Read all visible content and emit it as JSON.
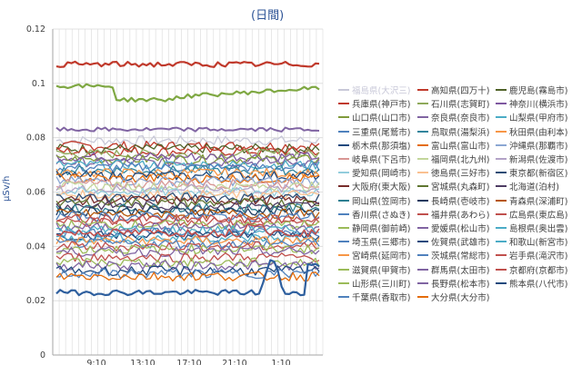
{
  "chart_data": {
    "type": "line",
    "title": "(日間)",
    "ylabel": "μSv/h",
    "xlabel": "",
    "ylim": [
      0,
      0.12
    ],
    "y_ticks": [
      "0",
      "0.02",
      "0.04",
      "0.06",
      "0.08",
      "0.1",
      "0.12"
    ],
    "x_ticks": [
      "9:10",
      "13:10",
      "17:10",
      "21:10",
      "1:10"
    ],
    "grid": true,
    "legend_position": "right",
    "series": [
      {
        "name": "福島県(大沢三)",
        "color": "#c8c8d8",
        "base": 0.078
      },
      {
        "name": "高知県(四万十)",
        "color": "#c0392b",
        "base": 0.076
      },
      {
        "name": "鹿児島(霧島市)",
        "color": "#4f6228",
        "base": 0.074
      },
      {
        "name": "兵庫県(神戸市)",
        "color": "#c0392b",
        "base": 0.072
      },
      {
        "name": "石川県(志賀町)",
        "color": "#8ea95a",
        "base": 0.07
      },
      {
        "name": "神奈川(横浜市)",
        "color": "#7e57a0",
        "base": 0.068
      },
      {
        "name": "山口県(山口市)",
        "color": "#7f9a3a",
        "base": 0.066
      },
      {
        "name": "奈良県(奈良市)",
        "color": "#8064a2",
        "base": 0.064
      },
      {
        "name": "山梨県(甲府市)",
        "color": "#4bacc6",
        "base": 0.063
      },
      {
        "name": "三重県(尾鷲市)",
        "color": "#4f81bd",
        "base": 0.062
      },
      {
        "name": "鳥取県(湯梨浜)",
        "color": "#31859c",
        "base": 0.061
      },
      {
        "name": "秋田県(由利本)",
        "color": "#f79646",
        "base": 0.06
      },
      {
        "name": "栃木県(那須塩)",
        "color": "#1f497d",
        "base": 0.058
      },
      {
        "name": "富山県(富山市)",
        "color": "#e46c0a",
        "base": 0.057
      },
      {
        "name": "沖縄県(那覇市)",
        "color": "#8ba7d3",
        "base": 0.056
      },
      {
        "name": "岐阜県(下呂市)",
        "color": "#d99694",
        "base": 0.055
      },
      {
        "name": "福岡県(北九州)",
        "color": "#c3d69b",
        "base": 0.054
      },
      {
        "name": "新潟県(佐渡市)",
        "color": "#b3a2c7",
        "base": 0.053
      },
      {
        "name": "愛知県(岡崎市)",
        "color": "#92cddc",
        "base": 0.052
      },
      {
        "name": "徳島県(三好市)",
        "color": "#fac090",
        "base": 0.05
      },
      {
        "name": "東京都(新宿区)",
        "color": "#2c4d75",
        "base": 0.049
      },
      {
        "name": "大阪府(東大阪)",
        "color": "#772c2a",
        "base": 0.048
      },
      {
        "name": "宮城県(丸森町)",
        "color": "#5f7530",
        "base": 0.047
      },
      {
        "name": "北海道(泊村)",
        "color": "#4d3b62",
        "base": 0.046
      },
      {
        "name": "岡山県(笠岡市)",
        "color": "#2d7f91",
        "base": 0.045
      },
      {
        "name": "長崎県(壱岐市)",
        "color": "#1f3a5f",
        "base": 0.044
      },
      {
        "name": "青森県(深浦町)",
        "color": "#b65708",
        "base": 0.043
      },
      {
        "name": "香川県(さぬき)",
        "color": "#4f81bd",
        "base": 0.042
      },
      {
        "name": "福井県(あわら)",
        "color": "#c0504d",
        "base": 0.041
      },
      {
        "name": "広島県(東広島)",
        "color": "#c0504d",
        "base": 0.04
      },
      {
        "name": "静岡県(御前崎)",
        "color": "#9bbb59",
        "base": 0.039
      },
      {
        "name": "愛媛県(松山市)",
        "color": "#8064a2",
        "base": 0.038
      },
      {
        "name": "島根県(奥出雲)",
        "color": "#4bacc6",
        "base": 0.037
      },
      {
        "name": "埼玉県(三郷市)",
        "color": "#4f81bd",
        "base": 0.036
      },
      {
        "name": "佐賀県(武雄市)",
        "color": "#1f497d",
        "base": 0.035
      },
      {
        "name": "和歌山(新宮市)",
        "color": "#4bacc6",
        "base": 0.034
      },
      {
        "name": "宮崎県(延岡市)",
        "color": "#f79646",
        "base": 0.033
      },
      {
        "name": "茨城県(常総市)",
        "color": "#4f81bd",
        "base": 0.032
      },
      {
        "name": "岩手県(滝沢市)",
        "color": "#c0504d",
        "base": 0.031
      },
      {
        "name": "滋賀県(甲賀市)",
        "color": "#9bbb59",
        "base": 0.03
      },
      {
        "name": "群馬県(太田市)",
        "color": "#8064a2",
        "base": 0.029
      },
      {
        "name": "京都府(京都市)",
        "color": "#c0504d",
        "base": 0.028
      },
      {
        "name": "山形県(三川町)",
        "color": "#9bbb59",
        "base": 0.027
      },
      {
        "name": "長野県(松本市)",
        "color": "#8064a2",
        "base": 0.026
      },
      {
        "name": "熊本県(八代市)",
        "color": "#1f497d",
        "base": 0.025
      },
      {
        "name": "千葉県(香取市)",
        "color": "#4f81bd",
        "base": 0.024
      },
      {
        "name": "大分県(大分市)",
        "color": "#e46c0a",
        "base": 0.023
      }
    ],
    "highlighted_series": [
      {
        "name": "top-red",
        "color": "#c0392b",
        "approx_level": 0.107
      },
      {
        "name": "green-0.1",
        "color": "#7fa843",
        "approx_level": 0.098
      },
      {
        "name": "purple-0.083",
        "color": "#8064a2",
        "approx_level": 0.083
      },
      {
        "name": "blue-low",
        "color": "#2e5f9e",
        "approx_level": 0.023
      }
    ]
  }
}
